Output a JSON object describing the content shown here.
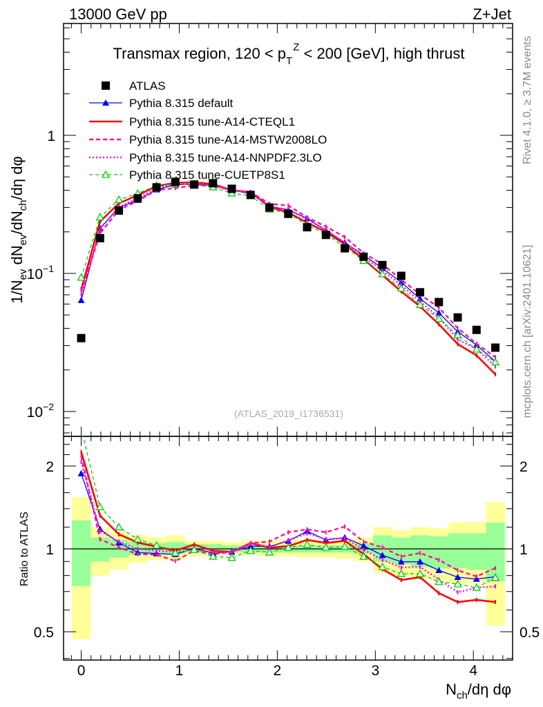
{
  "header": {
    "left": "13000 GeV pp",
    "right": "Z+Jet"
  },
  "side_text": {
    "rivet": "Rivet 4.1.0, ≥ 3.7M events",
    "mcplots": "mcplots.cern.ch [arXiv:2401.10621]"
  },
  "title": {
    "pre": "Transmax region, 120 < p",
    "sub": "T",
    "sup": "Z",
    "post": " < 200 [GeV], high thrust"
  },
  "analysis_id": "(ATLAS_2019_I1736531)",
  "chart_data": {
    "type": "line",
    "title": "Transmax region, 120 < pT^Z < 200 [GeV], high thrust",
    "xlabel": {
      "base": "N",
      "sub": "ch",
      "post": "/dη dφ"
    },
    "ylabel": "1/N_ev dN_ev/dN_ch/dη dφ",
    "ratio_ylabel": "Ratio to ATLAS",
    "xlim": [
      -0.18,
      4.4
    ],
    "ylim": [
      0.0066,
      6.4
    ],
    "yscale": "log",
    "ratio_ylim": [
      0.4,
      2.55
    ],
    "x_ticks": [
      "0",
      "1",
      "2",
      "3",
      "4"
    ],
    "y_ticks": [
      {
        "base": "1",
        "exp": ""
      },
      {
        "base": "10",
        "exp": "−1"
      },
      {
        "base": "10",
        "exp": "−2"
      }
    ],
    "ratio_ticks": [
      "2",
      "1",
      "0.5"
    ],
    "x": [
      0,
      0.192,
      0.384,
      0.576,
      0.768,
      0.96,
      1.152,
      1.344,
      1.536,
      1.728,
      1.92,
      2.112,
      2.304,
      2.496,
      2.688,
      2.88,
      3.072,
      3.264,
      3.456,
      3.648,
      3.84,
      4.032,
      4.224
    ],
    "bin_width": 0.192,
    "atlas": [
      0.034,
      0.18,
      0.285,
      0.35,
      0.42,
      0.46,
      0.44,
      0.45,
      0.41,
      0.37,
      0.3,
      0.27,
      0.216,
      0.19,
      0.152,
      0.132,
      0.115,
      0.096,
      0.073,
      0.062,
      0.048,
      0.039,
      0.029
    ],
    "band_total": {
      "up": [
        1.54,
        1.2,
        1.15,
        1.12,
        1.1,
        1.12,
        1.07,
        1.07,
        1.06,
        1.07,
        1.07,
        1.08,
        1.08,
        1.07,
        1.08,
        1.1,
        1.2,
        1.17,
        1.2,
        1.19,
        1.25,
        1.25,
        1.48
      ],
      "down": [
        0.47,
        0.8,
        0.84,
        0.89,
        0.91,
        0.91,
        0.94,
        0.94,
        0.95,
        0.95,
        0.94,
        0.94,
        0.93,
        0.93,
        0.92,
        0.9,
        0.82,
        0.8,
        0.78,
        0.77,
        0.75,
        0.75,
        0.527
      ]
    },
    "band_stat": {
      "up": [
        1.27,
        1.1,
        1.08,
        1.06,
        1.05,
        1.06,
        1.04,
        1.04,
        1.03,
        1.03,
        1.03,
        1.03,
        1.03,
        1.03,
        1.03,
        1.05,
        1.12,
        1.1,
        1.12,
        1.11,
        1.14,
        1.14,
        1.245
      ],
      "down": [
        0.733,
        0.9,
        0.93,
        0.95,
        0.96,
        0.96,
        0.97,
        0.97,
        0.97,
        0.97,
        0.97,
        0.97,
        0.97,
        0.97,
        0.97,
        0.96,
        0.9,
        0.88,
        0.86,
        0.85,
        0.85,
        0.84,
        0.762
      ]
    },
    "legend": {
      "atlas": "ATLAS",
      "placement": "top-left"
    },
    "series": [
      {
        "name": "Pythia 8.315 default",
        "color": "#0000ff",
        "style": "solid-thin",
        "marker": "triangle-filled",
        "ratio": [
          1.88,
          1.18,
          1.053,
          0.97,
          0.962,
          0.955,
          1.004,
          0.966,
          0.975,
          1.023,
          1.02,
          1.068,
          1.16,
          1.078,
          1.1,
          1.027,
          0.948,
          0.898,
          0.898,
          0.836,
          0.789,
          0.777,
          0.792
        ]
      },
      {
        "name": "Pythia 8.315 tune-A14-CTEQL1",
        "color": "#ff0000",
        "style": "solid-thick",
        "marker": "none",
        "ratio": [
          2.25,
          1.32,
          1.13,
          1.053,
          1.02,
          0.985,
          1.037,
          0.985,
          0.975,
          1.05,
          1.01,
          1.023,
          1.078,
          1.05,
          1.07,
          0.957,
          0.844,
          0.771,
          0.789,
          0.69,
          0.641,
          0.653,
          0.641
        ]
      },
      {
        "name": "Pythia 8.315 tune-A14-MSTW2008LO",
        "color": "#ff1493",
        "style": "dashed",
        "marker": "none",
        "ratio": [
          2.17,
          1.084,
          1.013,
          0.957,
          0.953,
          0.903,
          0.985,
          0.957,
          0.975,
          1.05,
          1.063,
          1.149,
          1.178,
          1.149,
          1.205,
          1.063,
          1.013,
          0.938,
          0.966,
          0.912,
          0.836,
          0.794,
          0.852
        ]
      },
      {
        "name": "Pythia 8.315 tune-A14-NNPDF2.3LO",
        "color": "#ff00ff",
        "style": "dotted",
        "marker": "none",
        "ratio": [
          2.07,
          1.16,
          1.063,
          1.0,
          0.985,
          0.975,
          0.994,
          0.972,
          0.975,
          1.043,
          1.017,
          1.074,
          1.138,
          1.084,
          1.094,
          0.994,
          0.912,
          0.856,
          0.86,
          0.774,
          0.696,
          0.723,
          0.731
        ]
      },
      {
        "name": "Pythia 8.315 tune-CUETP8S1",
        "color": "#00cc00",
        "style": "dashed-thin",
        "marker": "triangle-open",
        "ratio": [
          2.75,
          1.42,
          1.2,
          1.084,
          1.03,
          0.966,
          0.994,
          0.938,
          0.929,
          0.985,
          0.972,
          1.01,
          1.037,
          1.013,
          1.02,
          0.938,
          0.86,
          0.812,
          0.812,
          0.759,
          0.745,
          0.723,
          0.786
        ]
      }
    ]
  }
}
